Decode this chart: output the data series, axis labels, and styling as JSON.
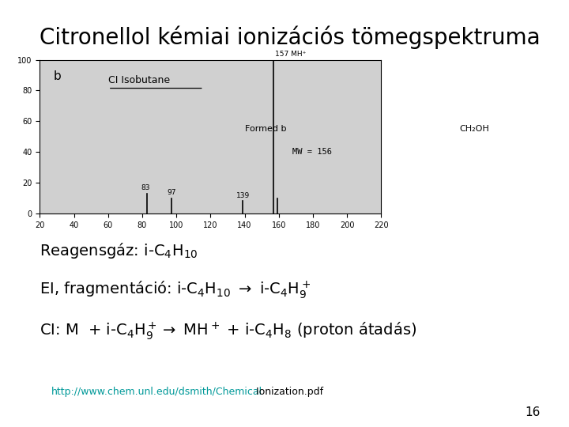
{
  "title": "Citronellol kémiai ionizációs tömegspektruma",
  "title_fontsize": 20,
  "background_color": "#ffffff",
  "url_text": "http://www.chem.unl.edu/dsmith/Chemical",
  "url_suffix": " Ionization.pdf",
  "page_number": "16",
  "spectrum": {
    "xlim": [
      20,
      220
    ],
    "ylim": [
      0,
      100
    ],
    "xticks": [
      20,
      40,
      60,
      80,
      100,
      120,
      140,
      160,
      180,
      200,
      220
    ],
    "yticks": [
      0,
      20,
      40,
      60,
      80,
      100
    ],
    "label_b": "b",
    "label_ci": "CI Isobutane",
    "label_formed": "Formed b",
    "label_mw": "MW = 156",
    "peaks": [
      {
        "mz": 83,
        "intensity": 13,
        "label": "83"
      },
      {
        "mz": 97,
        "intensity": 10,
        "label": "97"
      },
      {
        "mz": 139,
        "intensity": 8,
        "label": "139"
      },
      {
        "mz": 157,
        "intensity": 100,
        "label": "157 MH+"
      },
      {
        "mz": 159,
        "intensity": 10,
        "label": ""
      }
    ],
    "bgcolor": "#d0d0d0",
    "peak_color": "#000000"
  },
  "line1": "Reagensgáz: i-C$_4$H$_{10}$",
  "line2": "EI, fragmentáció: i-C$_4$H$_{10}$ $\\rightarrow$ i-C$_4$H$_9^+$",
  "line3": "CI: M  + i-C$_4$H$_9^+$$\\rightarrow$ MH$^+$ + i-C$_4$H$_8$ (proton átadás)"
}
